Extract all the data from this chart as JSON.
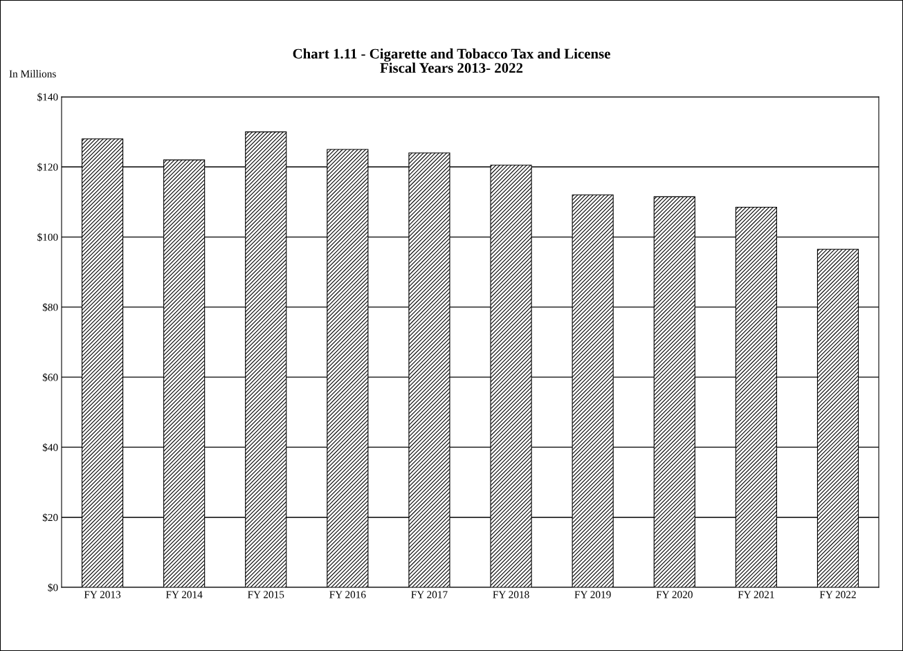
{
  "chart_data": {
    "type": "bar",
    "title": "Chart 1.11 - Cigarette and Tobacco Tax and License\nFiscal Years 2013- 2022",
    "ylabel": "In Millions",
    "categories": [
      "FY 2013",
      "FY 2014",
      "FY 2015",
      "FY 2016",
      "FY 2017",
      "FY 2018",
      "FY 2019",
      "FY 2020",
      "FY 2021",
      "FY 2022"
    ],
    "values": [
      128,
      122,
      130,
      125,
      124,
      120.5,
      112,
      111.5,
      108.5,
      96.5
    ],
    "color": "#000000",
    "ylim": [
      0,
      140
    ],
    "yticks": [
      {
        "value": 0,
        "label": "$0"
      },
      {
        "value": 20,
        "label": "$20"
      },
      {
        "value": 40,
        "label": "$40"
      },
      {
        "value": 60,
        "label": "$60"
      },
      {
        "value": 80,
        "label": "$80"
      },
      {
        "value": 100,
        "label": "$100"
      },
      {
        "value": 120,
        "label": "$120"
      },
      {
        "value": 140,
        "label": "$140"
      }
    ],
    "grid": "y",
    "legend": false
  }
}
